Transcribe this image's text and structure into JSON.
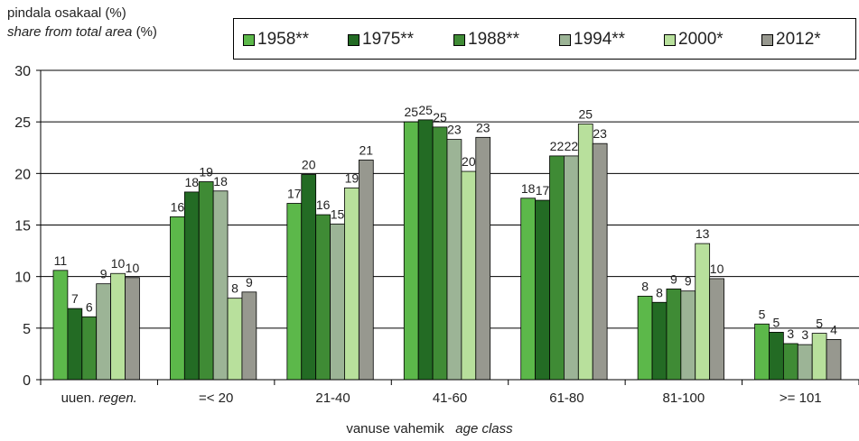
{
  "ylabel_line1": "pindala osakaal (%)",
  "ylabel_line2_italic": "share from total area",
  "ylabel_line2_unit": " (%)",
  "xlabel_plain": "vanuse vahemik",
  "xlabel_italic": "age class",
  "legend": [
    {
      "name": "1958**",
      "color": "#5cb84a"
    },
    {
      "name": "1975**",
      "color": "#236b24"
    },
    {
      "name": "1988**",
      "color": "#3f8b35"
    },
    {
      "name": "1994**",
      "color": "#9cb496"
    },
    {
      "name": "2000*",
      "color": "#b8e09c"
    },
    {
      "name": "2012*",
      "color": "#97988f"
    }
  ],
  "chart_data": {
    "type": "bar",
    "ylim": [
      0,
      30
    ],
    "yticks": [
      0,
      5,
      10,
      15,
      20,
      25,
      30
    ],
    "grid": true,
    "legend_position": "top",
    "categories": [
      {
        "plain": "uuen. ",
        "italic": "regen."
      },
      {
        "plain": "=< 20",
        "italic": ""
      },
      {
        "plain": "21-40",
        "italic": ""
      },
      {
        "plain": "41-60",
        "italic": ""
      },
      {
        "plain": "61-80",
        "italic": ""
      },
      {
        "plain": "81-100",
        "italic": ""
      },
      {
        "plain": ">= 101",
        "italic": ""
      }
    ],
    "series": [
      {
        "name": "1958**",
        "values": [
          10.6,
          15.8,
          17.1,
          25.0,
          17.6,
          8.1,
          5.4
        ],
        "labels": [
          "11",
          "16",
          "17",
          "25",
          "18",
          "8",
          "5"
        ]
      },
      {
        "name": "1975**",
        "values": [
          6.9,
          18.2,
          19.9,
          25.2,
          17.4,
          7.5,
          4.6
        ],
        "labels": [
          "7",
          "18",
          "20",
          "25",
          "17",
          "8",
          "5"
        ]
      },
      {
        "name": "1988**",
        "values": [
          6.1,
          19.2,
          16.0,
          24.5,
          21.7,
          8.8,
          3.5
        ],
        "labels": [
          "6",
          "19",
          "16",
          "25",
          "22",
          "9",
          "3"
        ]
      },
      {
        "name": "1994**",
        "values": [
          9.3,
          18.3,
          15.1,
          23.3,
          21.7,
          8.6,
          3.4
        ],
        "labels": [
          "9",
          "18",
          "15",
          "23",
          "22",
          "9",
          "3"
        ]
      },
      {
        "name": "2000*",
        "values": [
          10.3,
          7.9,
          18.6,
          20.2,
          24.8,
          13.2,
          4.5
        ],
        "labels": [
          "10",
          "8",
          "19",
          "20",
          "25",
          "13",
          "5"
        ]
      },
      {
        "name": "2012*",
        "values": [
          9.9,
          8.5,
          21.3,
          23.5,
          22.9,
          9.8,
          3.9
        ],
        "labels": [
          "10",
          "9",
          "21",
          "23",
          "23",
          "10",
          "4"
        ]
      }
    ]
  }
}
